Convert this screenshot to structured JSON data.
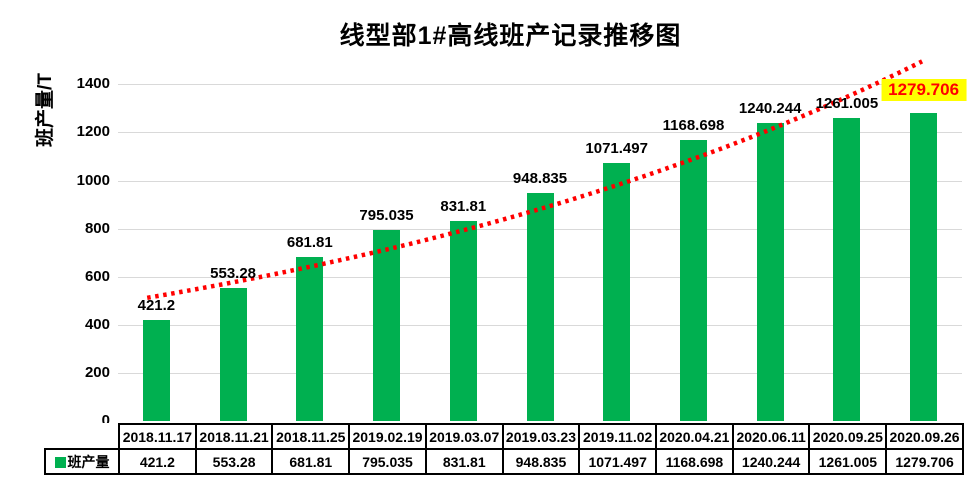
{
  "chart_data": {
    "type": "bar",
    "title": "线型部1#高线班产记录推移图",
    "xlabel": "",
    "ylabel": "班产量/T",
    "categories": [
      "2018.11.17",
      "2018.11.21",
      "2018.11.25",
      "2019.02.19",
      "2019.03.07",
      "2019.03.23",
      "2019.11.02",
      "2020.04.21",
      "2020.06.11",
      "2020.09.25",
      "2020.09.26"
    ],
    "series": [
      {
        "name": "班产量",
        "values": [
          421.2,
          553.28,
          681.81,
          795.035,
          831.81,
          948.835,
          1071.497,
          1168.698,
          1240.244,
          1261.005,
          1279.706
        ]
      }
    ],
    "value_labels": [
      "421.2",
      "553.28",
      "681.81",
      "795.035",
      "831.81",
      "948.835",
      "1071.497",
      "1168.698",
      "1240.244",
      "1261.005",
      "1279.706"
    ],
    "yticks": [
      0,
      200,
      400,
      600,
      800,
      1000,
      1200,
      1400
    ],
    "ylim": [
      0,
      1500
    ],
    "grid": true,
    "data_labels": true,
    "legend_position": "bottom-table-left",
    "trendline": {
      "type": "exponential",
      "style": "dotted",
      "color": "#FF0000"
    },
    "highlight_last_label": {
      "background": "#FFFF00",
      "text_color": "#FF0000"
    },
    "colors": {
      "bar": "#00B050",
      "gridline": "#D9D9D9",
      "text": "#000000",
      "table_border": "#000000",
      "background": "#FFFFFF"
    }
  }
}
